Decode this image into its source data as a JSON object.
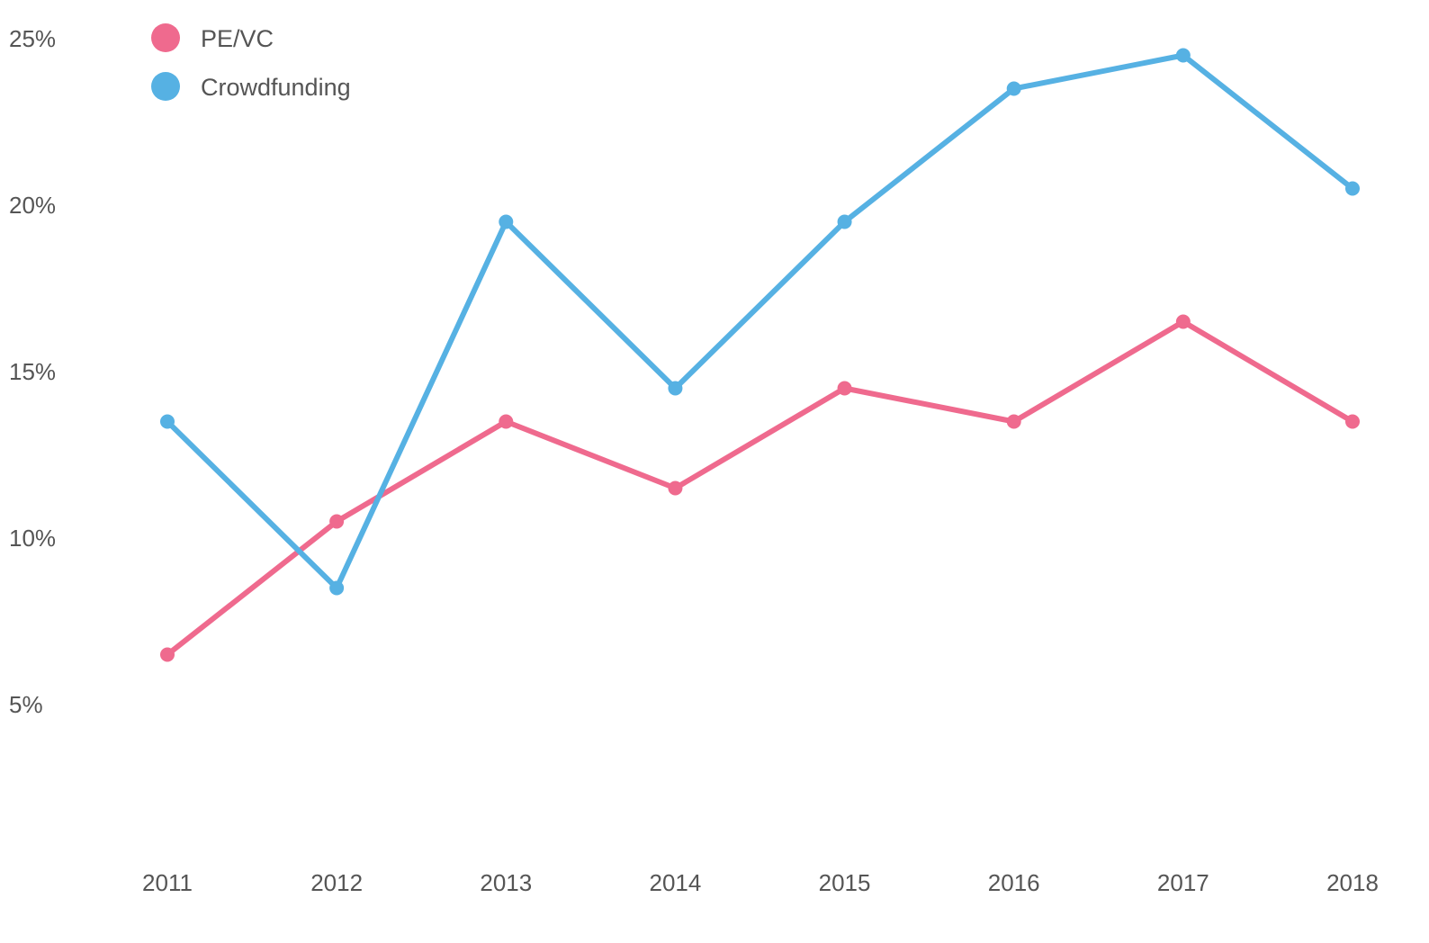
{
  "chart_data": {
    "type": "line",
    "title": "",
    "xlabel": "",
    "ylabel": "",
    "x": [
      "2011",
      "2012",
      "2013",
      "2014",
      "2015",
      "2016",
      "2017",
      "2018"
    ],
    "y_ticks": [
      {
        "value": 5,
        "label": "5%"
      },
      {
        "value": 10,
        "label": "10%"
      },
      {
        "value": 15,
        "label": "15%"
      },
      {
        "value": 20,
        "label": "20%"
      },
      {
        "value": 25,
        "label": "25%"
      }
    ],
    "ylim": [
      1,
      25
    ],
    "grid": false,
    "legend_position": "top-left",
    "series": [
      {
        "name": "PE/VC",
        "color": "#ef6a8e",
        "values": [
          6.5,
          10.5,
          13.5,
          11.5,
          14.5,
          13.5,
          16.5,
          13.5
        ]
      },
      {
        "name": "Crowdfunding",
        "color": "#56b1e3",
        "values": [
          13.5,
          8.5,
          19.5,
          14.5,
          19.5,
          23.5,
          24.5,
          20.5
        ]
      }
    ]
  }
}
